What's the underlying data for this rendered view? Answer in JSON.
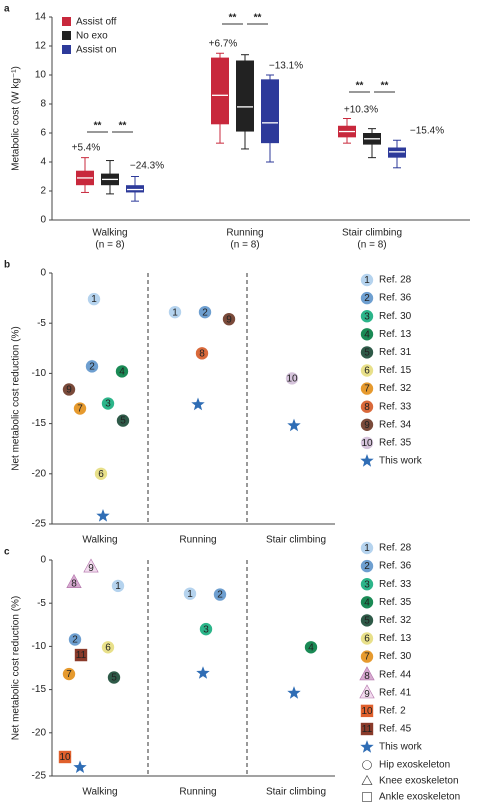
{
  "chart_data": [
    {
      "type": "box",
      "panel": "a",
      "ylabel": "Metabolic cost (W kg⁻¹)",
      "categories": [
        "Walking",
        "Running",
        "Stair climbing"
      ],
      "category_notes": [
        "(n = 8)",
        "(n = 8)",
        "(n = 8)"
      ],
      "ylim": [
        0,
        14
      ],
      "yticks": [
        0,
        2,
        4,
        6,
        8,
        10,
        12,
        14
      ],
      "series": [
        {
          "name": "Assist off",
          "color": "#c8283c",
          "values": [
            [
              1.9,
              2.4,
              2.9,
              3.4,
              4.3
            ],
            [
              5.3,
              6.6,
              8.6,
              11.2,
              11.5
            ],
            [
              5.3,
              5.7,
              6.1,
              6.5,
              7.0
            ]
          ]
        },
        {
          "name": "No exo",
          "color": "#222222",
          "values": [
            [
              1.8,
              2.4,
              2.8,
              3.2,
              4.1
            ],
            [
              4.9,
              6.1,
              7.8,
              11.0,
              11.4
            ],
            [
              4.3,
              5.2,
              5.6,
              6.0,
              6.3
            ]
          ]
        },
        {
          "name": "Assist on",
          "color": "#2d3a9a",
          "values": [
            [
              1.3,
              1.9,
              2.1,
              2.4,
              3.0
            ],
            [
              4.0,
              5.3,
              6.7,
              9.7,
              10.0
            ],
            [
              3.6,
              4.3,
              4.7,
              5.0,
              5.5
            ]
          ]
        }
      ],
      "annotations": [
        "+5.4%",
        "−24.3%",
        "+6.7%",
        "−13.1%",
        "+10.3%",
        "−15.4%"
      ],
      "significance": [
        "**",
        "**",
        "**",
        "**",
        "**",
        "**"
      ]
    },
    {
      "type": "dot",
      "panel": "b",
      "ylabel": "Net metabolic cost reduction (%)",
      "categories": [
        "Walking",
        "Running",
        "Stair climbing"
      ],
      "ylim": [
        -25,
        0
      ],
      "yticks": [
        0,
        -5,
        -10,
        -15,
        -20,
        -25
      ],
      "series": [
        {
          "name": "Ref. 28",
          "marker_label": "1",
          "marker": "circle",
          "color": "#b5d3ee",
          "values": [
            -2.6,
            -3.9,
            null
          ]
        },
        {
          "name": "Ref. 36",
          "marker_label": "2",
          "marker": "circle",
          "color": "#6e9fd0",
          "values": [
            -9.3,
            -3.9,
            null
          ]
        },
        {
          "name": "Ref. 30",
          "marker_label": "3",
          "marker": "circle",
          "color": "#2cb58a",
          "values": [
            -13.0,
            null,
            null
          ]
        },
        {
          "name": "Ref. 13",
          "marker_label": "4",
          "marker": "circle",
          "color": "#1a8a55",
          "values": [
            -9.8,
            null,
            null
          ]
        },
        {
          "name": "Ref. 31",
          "marker_label": "5",
          "marker": "circle",
          "color": "#2e5a48",
          "values": [
            -14.7,
            null,
            null
          ]
        },
        {
          "name": "Ref. 15",
          "marker_label": "6",
          "marker": "circle",
          "color": "#e8e08a",
          "values": [
            -20.0,
            null,
            null
          ]
        },
        {
          "name": "Ref. 32",
          "marker_label": "7",
          "marker": "circle",
          "color": "#e69a2e",
          "values": [
            -13.5,
            null,
            null
          ]
        },
        {
          "name": "Ref. 33",
          "marker_label": "8",
          "marker": "circle",
          "color": "#d9693a",
          "values": [
            null,
            -8.0,
            null
          ]
        },
        {
          "name": "Ref. 34",
          "marker_label": "9",
          "marker": "circle",
          "color": "#7a4a3a",
          "values": [
            -11.6,
            -4.6,
            null
          ]
        },
        {
          "name": "Ref. 35",
          "marker_label": "10",
          "marker": "circle",
          "color": "#d5c3db",
          "values": [
            null,
            null,
            -10.5
          ]
        },
        {
          "name": "This work",
          "marker": "star",
          "color": "#2f6db5",
          "values": [
            -24.2,
            -13.1,
            -15.2
          ]
        }
      ]
    },
    {
      "type": "dot",
      "panel": "c",
      "ylabel": "Net metabolic cost reduction (%)",
      "categories": [
        "Walking",
        "Running",
        "Stair climbing"
      ],
      "ylim": [
        -25,
        0
      ],
      "yticks": [
        0,
        -5,
        -10,
        -15,
        -20,
        -25
      ],
      "series": [
        {
          "name": "Ref. 28",
          "marker_label": "1",
          "marker": "circle",
          "color": "#b5d3ee",
          "values": [
            -3.0,
            -3.9,
            null
          ]
        },
        {
          "name": "Ref. 36",
          "marker_label": "2",
          "marker": "circle",
          "color": "#6e9fd0",
          "values": [
            -9.2,
            -4.0,
            null
          ]
        },
        {
          "name": "Ref. 33",
          "marker_label": "3",
          "marker": "circle",
          "color": "#2cb58a",
          "values": [
            null,
            -8.0,
            null
          ]
        },
        {
          "name": "Ref. 35",
          "marker_label": "4",
          "marker": "circle",
          "color": "#1a8a55",
          "values": [
            null,
            null,
            -10.1
          ]
        },
        {
          "name": "Ref. 32",
          "marker_label": "5",
          "marker": "circle",
          "color": "#2e5a48",
          "values": [
            -13.6,
            null,
            null
          ]
        },
        {
          "name": "Ref. 13",
          "marker_label": "6",
          "marker": "circle",
          "color": "#e8e08a",
          "values": [
            -10.1,
            null,
            null
          ]
        },
        {
          "name": "Ref. 30",
          "marker_label": "7",
          "marker": "circle",
          "color": "#e69a2e",
          "values": [
            -13.2,
            null,
            null
          ]
        },
        {
          "name": "Ref. 44",
          "marker_label": "8",
          "marker": "triangle",
          "color": "#d6a8cf",
          "values": [
            -2.6,
            null,
            null
          ]
        },
        {
          "name": "Ref. 41",
          "marker_label": "9",
          "marker": "triangle",
          "color": "#f3dcef",
          "values": [
            -0.8,
            null,
            null
          ]
        },
        {
          "name": "Ref. 2",
          "marker_label": "10",
          "marker": "square",
          "color": "#e0602c",
          "values": [
            -22.8,
            null,
            null
          ]
        },
        {
          "name": "Ref. 45",
          "marker_label": "11",
          "marker": "square",
          "color": "#8a3a2a",
          "values": [
            -11.0,
            null,
            null
          ]
        },
        {
          "name": "This work",
          "marker": "star",
          "color": "#2f6db5",
          "values": [
            -24.0,
            -13.1,
            -15.4
          ]
        }
      ],
      "shape_legend": [
        {
          "marker": "circle",
          "label": "Hip exoskeleton"
        },
        {
          "marker": "triangle",
          "label": "Knee exoskeleton"
        },
        {
          "marker": "square",
          "label": "Ankle exoskeleton"
        }
      ]
    }
  ]
}
